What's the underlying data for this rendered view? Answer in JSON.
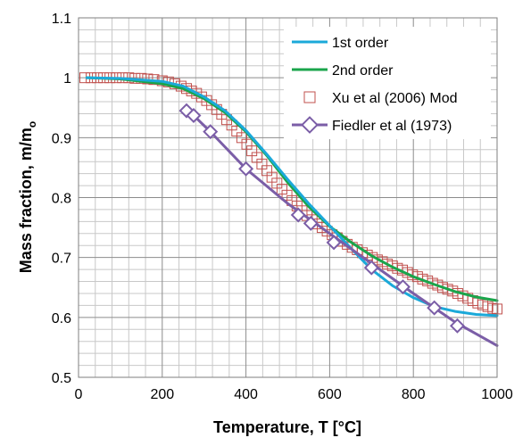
{
  "chart_data": {
    "type": "line",
    "xlabel": "Temperature, T [°C]",
    "ylabel_main": "Mass fraction, m/m",
    "ylabel_sub": "o",
    "xlim": [
      0,
      1000
    ],
    "ylim": [
      0.5,
      1.1
    ],
    "x_ticks": [
      "0",
      "200",
      "400",
      "600",
      "800",
      "1000"
    ],
    "y_ticks": [
      "0.5",
      "0.6",
      "0.7",
      "0.8",
      "0.9",
      "1",
      "1.1"
    ],
    "grid": true,
    "legend_position": "top-right",
    "series": [
      {
        "name": "1st order",
        "style": "line",
        "color": "#1ba9d9",
        "points": [
          [
            20,
            1.0
          ],
          [
            100,
            0.999
          ],
          [
            200,
            0.994
          ],
          [
            250,
            0.986
          ],
          [
            300,
            0.968
          ],
          [
            350,
            0.945
          ],
          [
            400,
            0.912
          ],
          [
            450,
            0.872
          ],
          [
            500,
            0.83
          ],
          [
            550,
            0.79
          ],
          [
            600,
            0.753
          ],
          [
            650,
            0.716
          ],
          [
            700,
            0.68
          ],
          [
            750,
            0.653
          ],
          [
            800,
            0.633
          ],
          [
            850,
            0.618
          ],
          [
            900,
            0.61
          ],
          [
            950,
            0.605
          ],
          [
            1000,
            0.603
          ]
        ]
      },
      {
        "name": "2nd order",
        "style": "line",
        "color": "#1aa54b",
        "points": [
          [
            20,
            1.0
          ],
          [
            100,
            0.998
          ],
          [
            200,
            0.99
          ],
          [
            250,
            0.982
          ],
          [
            300,
            0.965
          ],
          [
            350,
            0.942
          ],
          [
            400,
            0.91
          ],
          [
            450,
            0.87
          ],
          [
            500,
            0.825
          ],
          [
            550,
            0.785
          ],
          [
            600,
            0.752
          ],
          [
            650,
            0.726
          ],
          [
            700,
            0.703
          ],
          [
            750,
            0.684
          ],
          [
            800,
            0.668
          ],
          [
            850,
            0.655
          ],
          [
            900,
            0.643
          ],
          [
            950,
            0.634
          ],
          [
            1000,
            0.628
          ]
        ]
      },
      {
        "name": "Xu et al (2006) Mod",
        "style": "marker",
        "color": "#c0504d",
        "points": [
          [
            15,
            1.0
          ],
          [
            30,
            1.0
          ],
          [
            45,
            1.0
          ],
          [
            60,
            1.0
          ],
          [
            75,
            1.0
          ],
          [
            90,
            1.0
          ],
          [
            105,
            1.0
          ],
          [
            120,
            1.0
          ],
          [
            135,
            0.999
          ],
          [
            150,
            0.999
          ],
          [
            165,
            0.998
          ],
          [
            180,
            0.997
          ],
          [
            200,
            0.995
          ],
          [
            215,
            0.993
          ],
          [
            230,
            0.99
          ],
          [
            245,
            0.986
          ],
          [
            258,
            0.982
          ],
          [
            270,
            0.978
          ],
          [
            282,
            0.974
          ],
          [
            294,
            0.968
          ],
          [
            306,
            0.962
          ],
          [
            318,
            0.955
          ],
          [
            330,
            0.947
          ],
          [
            342,
            0.939
          ],
          [
            354,
            0.93
          ],
          [
            366,
            0.921
          ],
          [
            378,
            0.911
          ],
          [
            390,
            0.9
          ],
          [
            402,
            0.889
          ],
          [
            414,
            0.878
          ],
          [
            426,
            0.867
          ],
          [
            438,
            0.856
          ],
          [
            450,
            0.845
          ],
          [
            462,
            0.834
          ],
          [
            474,
            0.824
          ],
          [
            486,
            0.814
          ],
          [
            498,
            0.804
          ],
          [
            510,
            0.795
          ],
          [
            522,
            0.786
          ],
          [
            534,
            0.778
          ],
          [
            546,
            0.77
          ],
          [
            558,
            0.763
          ],
          [
            570,
            0.756
          ],
          [
            582,
            0.75
          ],
          [
            594,
            0.744
          ],
          [
            606,
            0.738
          ],
          [
            618,
            0.733
          ],
          [
            630,
            0.727
          ],
          [
            642,
            0.722
          ],
          [
            654,
            0.717
          ],
          [
            666,
            0.713
          ],
          [
            678,
            0.708
          ],
          [
            690,
            0.704
          ],
          [
            702,
            0.7
          ],
          [
            714,
            0.696
          ],
          [
            726,
            0.693
          ],
          [
            738,
            0.689
          ],
          [
            750,
            0.686
          ],
          [
            762,
            0.682
          ],
          [
            774,
            0.679
          ],
          [
            786,
            0.675
          ],
          [
            798,
            0.671
          ],
          [
            810,
            0.668
          ],
          [
            822,
            0.664
          ],
          [
            834,
            0.661
          ],
          [
            846,
            0.657
          ],
          [
            858,
            0.654
          ],
          [
            870,
            0.65
          ],
          [
            882,
            0.647
          ],
          [
            894,
            0.644
          ],
          [
            906,
            0.64
          ],
          [
            918,
            0.636
          ],
          [
            930,
            0.632
          ],
          [
            942,
            0.628
          ],
          [
            954,
            0.624
          ],
          [
            966,
            0.621
          ],
          [
            978,
            0.618
          ],
          [
            990,
            0.615
          ],
          [
            1000,
            0.614
          ]
        ]
      },
      {
        "name": "Fiedler et al (1973)",
        "style": "line+marker",
        "color": "#7b5ea7",
        "points": [
          [
            258,
            0.945
          ],
          [
            275,
            0.937
          ],
          [
            315,
            0.91
          ],
          [
            400,
            0.848
          ],
          [
            500,
            0.79
          ],
          [
            600,
            0.74
          ],
          [
            700,
            0.69
          ],
          [
            800,
            0.64
          ],
          [
            900,
            0.592
          ],
          [
            1000,
            0.553
          ]
        ],
        "markers": [
          [
            258,
            0.945
          ],
          [
            275,
            0.937
          ],
          [
            315,
            0.91
          ],
          [
            400,
            0.848
          ],
          [
            525,
            0.771
          ],
          [
            555,
            0.757
          ],
          [
            610,
            0.725
          ],
          [
            700,
            0.683
          ],
          [
            775,
            0.651
          ],
          [
            850,
            0.616
          ],
          [
            905,
            0.586
          ]
        ]
      }
    ]
  }
}
